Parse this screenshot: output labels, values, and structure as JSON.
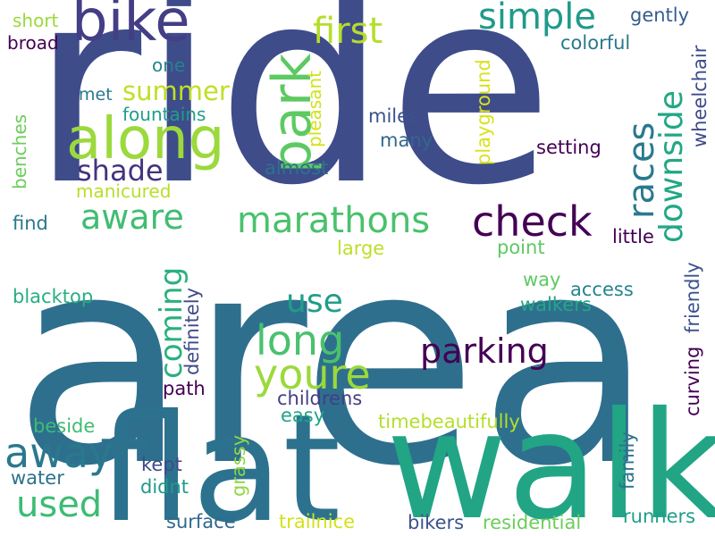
{
  "words": [
    {
      "text": "area",
      "color": "#2e6f8e"
    },
    {
      "text": "ride",
      "color": "#3e4c8a"
    },
    {
      "text": "flat",
      "color": "#2c728e"
    },
    {
      "text": "walk",
      "color": "#21a585"
    },
    {
      "text": "along",
      "color": "#9bd93c"
    },
    {
      "text": "bike",
      "color": "#433e85"
    },
    {
      "text": "park",
      "color": "#5ec962"
    },
    {
      "text": "first",
      "color": "#b5de2b"
    },
    {
      "text": "simple",
      "color": "#1f9a8a"
    },
    {
      "text": "gently",
      "color": "#365c8d"
    },
    {
      "text": "colorful",
      "color": "#2a788e"
    },
    {
      "text": "short",
      "color": "#9bd93c"
    },
    {
      "text": "broad",
      "color": "#440154"
    },
    {
      "text": "one",
      "color": "#26828e"
    },
    {
      "text": "met",
      "color": "#2a788e"
    },
    {
      "text": "summer",
      "color": "#c0df25"
    },
    {
      "text": "fountains",
      "color": "#1f9e89"
    },
    {
      "text": "shade",
      "color": "#46327e"
    },
    {
      "text": "manicured",
      "color": "#b8de29"
    },
    {
      "text": "benches",
      "color": "#6ccd5a"
    },
    {
      "text": "pleasant",
      "color": "#d2e21b"
    },
    {
      "text": "miles",
      "color": "#3b528b"
    },
    {
      "text": "many",
      "color": "#31688e"
    },
    {
      "text": "almost",
      "color": "#2c728e"
    },
    {
      "text": "playground",
      "color": "#d8e219"
    },
    {
      "text": "setting",
      "color": "#440154"
    },
    {
      "text": "races",
      "color": "#29798e"
    },
    {
      "text": "downside",
      "color": "#22a785"
    },
    {
      "text": "wheelchair",
      "color": "#3e4a89"
    },
    {
      "text": "aware",
      "color": "#40bd72"
    },
    {
      "text": "coming",
      "color": "#2ab07f"
    },
    {
      "text": "marathons",
      "color": "#4ac16d"
    },
    {
      "text": "check",
      "color": "#440154"
    },
    {
      "text": "find",
      "color": "#2a788e"
    },
    {
      "text": "large",
      "color": "#bddf26"
    },
    {
      "text": "point",
      "color": "#5ec962"
    },
    {
      "text": "little",
      "color": "#440154"
    },
    {
      "text": "long",
      "color": "#4ac16d"
    },
    {
      "text": "youre",
      "color": "#9bd93c"
    },
    {
      "text": "use",
      "color": "#1f9e89"
    },
    {
      "text": "parking",
      "color": "#440154"
    },
    {
      "text": "blacktop",
      "color": "#29af7f"
    },
    {
      "text": "definitely",
      "color": "#3e4a89"
    },
    {
      "text": "way",
      "color": "#5ec962"
    },
    {
      "text": "access",
      "color": "#25848e"
    },
    {
      "text": "walkers",
      "color": "#22a785"
    },
    {
      "text": "curving",
      "color": "#440154"
    },
    {
      "text": "friendly",
      "color": "#3b528b"
    },
    {
      "text": "path",
      "color": "#440154"
    },
    {
      "text": "childrens",
      "color": "#433e85"
    },
    {
      "text": "easy",
      "color": "#20a486"
    },
    {
      "text": "beside",
      "color": "#3dbc74"
    },
    {
      "text": "timebeautifully",
      "color": "#b5de2b"
    },
    {
      "text": "away",
      "color": "#2a788e"
    },
    {
      "text": "used",
      "color": "#3dbc74"
    },
    {
      "text": "water",
      "color": "#2c728e"
    },
    {
      "text": "kept",
      "color": "#3e4a89"
    },
    {
      "text": "didnt",
      "color": "#1f9a8a"
    },
    {
      "text": "grassy",
      "color": "#8fd744"
    },
    {
      "text": "family",
      "color": "#2c728e"
    },
    {
      "text": "surface",
      "color": "#31688e"
    },
    {
      "text": "trailnice",
      "color": "#d2e21b"
    },
    {
      "text": "bikers",
      "color": "#3b528b"
    },
    {
      "text": "residential",
      "color": "#6ccd5a"
    },
    {
      "text": "runners",
      "color": "#1f9e89"
    }
  ]
}
